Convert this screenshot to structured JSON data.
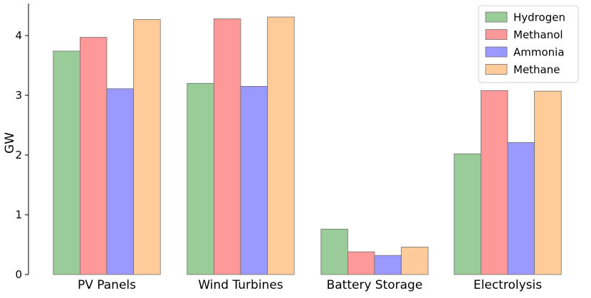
{
  "chart_data": {
    "type": "bar",
    "categories": [
      "PV Panels",
      "Wind Turbines",
      "Battery Storage",
      "Electrolysis"
    ],
    "series": [
      {
        "name": "Hydrogen",
        "color": "#99cc99",
        "values": [
          3.74,
          3.2,
          0.76,
          2.02
        ]
      },
      {
        "name": "Methanol",
        "color": "#ff9999",
        "values": [
          3.97,
          4.28,
          0.38,
          3.08
        ]
      },
      {
        "name": "Ammonia",
        "color": "#9999ff",
        "values": [
          3.11,
          3.15,
          0.32,
          2.21
        ]
      },
      {
        "name": "Methane",
        "color": "#ffcc99",
        "values": [
          4.27,
          4.31,
          0.46,
          3.07
        ]
      }
    ],
    "title": "",
    "xlabel": "",
    "ylabel": "GW",
    "ylim": [
      0,
      4.5
    ],
    "yticks": [
      0,
      1,
      2,
      3,
      4
    ],
    "grid": false,
    "legend_position": "top-right"
  }
}
